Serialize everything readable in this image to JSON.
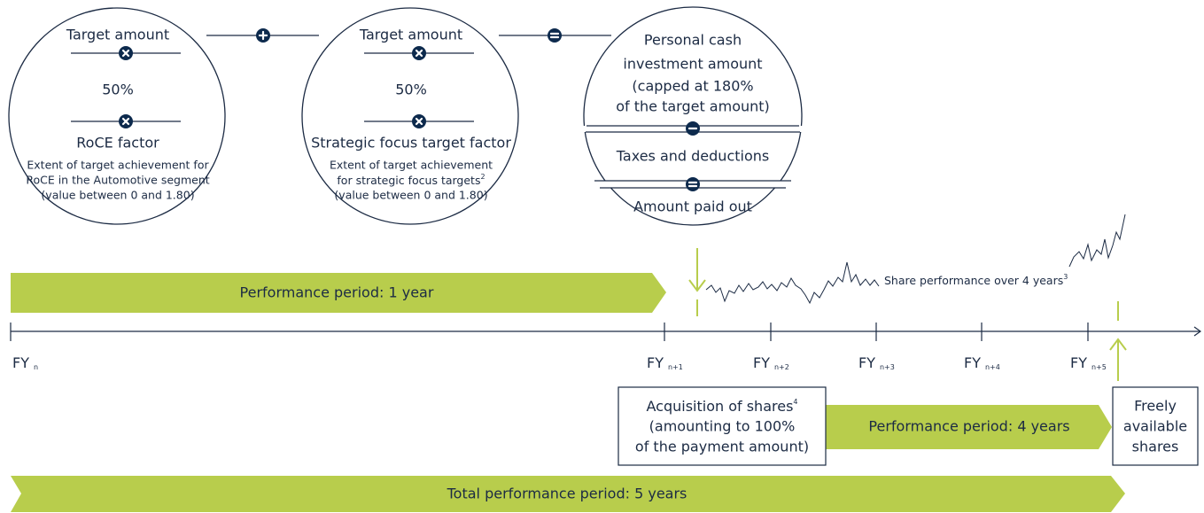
{
  "formula": {
    "left": {
      "term_1": "Target amount",
      "factor": "50%",
      "term_2": "RoCE factor",
      "description": [
        "Extent of target achievement for",
        "RoCE in the Automotive segment",
        "(value between 0 and 1.80)"
      ]
    },
    "middle": {
      "term_1": "Target amount",
      "factor": "50%",
      "term_2": "Strategic focus target factor",
      "description": [
        "Extent of target achievement",
        "for strategic focus targets",
        "(value between 0 and 1.80)"
      ],
      "footnote": "2"
    },
    "result": {
      "investment": [
        "Personal cash",
        "investment amount",
        "(capped at 180%",
        "of the target amount)"
      ],
      "deductions": "Taxes and deductions",
      "payout": "Amount paid out"
    }
  },
  "timeline": {
    "periods": {
      "first": "Performance period: 1 year",
      "second": "Performance period: 4 years",
      "total": "Total performance period: 5 years"
    },
    "years": [
      {
        "label": "FY",
        "sub": "n"
      },
      {
        "label": "FY",
        "sub": "n+1"
      },
      {
        "label": "FY",
        "sub": "n+2"
      },
      {
        "label": "FY",
        "sub": "n+3"
      },
      {
        "label": "FY",
        "sub": "n+4"
      },
      {
        "label": "FY",
        "sub": "n+5"
      }
    ],
    "share_performance": {
      "text": "Share performance over 4 years",
      "footnote": "3"
    },
    "acquisition": {
      "lines": [
        "Acquisition of shares",
        "(amounting to 100%",
        "of the payment amount)"
      ],
      "footnote": "4"
    },
    "release": [
      "Freely",
      "available",
      "shares"
    ]
  }
}
